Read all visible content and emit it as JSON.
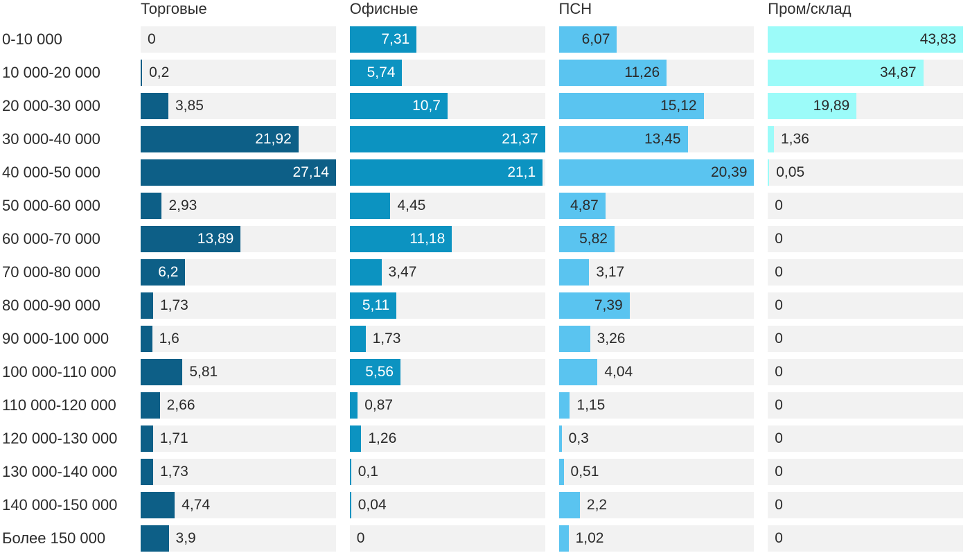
{
  "chart_data": {
    "type": "bar",
    "orientation": "horizontal",
    "title": "",
    "xlabel": "",
    "ylabel": "",
    "grid": false,
    "legend_position": "column-headers-top",
    "scaling_note": "each column scaled independently, column max = full track width",
    "decimal_separator": ",",
    "track_color": "#f2f2f2",
    "text_color": "#2b2b2b",
    "categories": [
      "0-10 000",
      "10 000-20 000",
      "20 000-30 000",
      "30 000-40 000",
      "40 000-50 000",
      "50 000-60 000",
      "60 000-70 000",
      "70 000-80 000",
      "80 000-90 000",
      "90 000-100 000",
      "100 000-110 000",
      "110 000-120 000",
      "120 000-130 000",
      "130 000-140 000",
      "140 000-150 000",
      "Более 150 000"
    ],
    "series": [
      {
        "name": "Торговые",
        "color": "#0d5f87",
        "label_color_inside": "#ffffff",
        "label_color_outside": "#2b2b2b",
        "scale_max": 27.14,
        "values": [
          0,
          0.2,
          3.85,
          21.92,
          27.14,
          2.93,
          13.89,
          6.2,
          1.73,
          1.6,
          5.81,
          2.66,
          1.71,
          1.73,
          4.74,
          3.9
        ]
      },
      {
        "name": "Офисные",
        "color": "#0c93c1",
        "label_color_inside": "#ffffff",
        "label_color_outside": "#2b2b2b",
        "scale_max": 21.37,
        "values": [
          7.31,
          5.74,
          10.7,
          21.37,
          21.1,
          4.45,
          11.18,
          3.47,
          5.11,
          1.73,
          5.56,
          0.87,
          1.26,
          0.1,
          0.04,
          0
        ]
      },
      {
        "name": "ПСН",
        "color": "#5ac4f0",
        "label_color_inside": "#2b2b2b",
        "label_color_outside": "#2b2b2b",
        "scale_max": 20.39,
        "values": [
          6.07,
          11.26,
          15.12,
          13.45,
          20.39,
          4.87,
          5.82,
          3.17,
          7.39,
          3.26,
          4.04,
          1.15,
          0.3,
          0.51,
          2.2,
          1.02
        ]
      },
      {
        "name": "Пром/склад",
        "color": "#9cfbf9",
        "label_color_inside": "#2b2b2b",
        "label_color_outside": "#2b2b2b",
        "scale_max": 43.83,
        "values": [
          43.83,
          34.87,
          19.89,
          1.36,
          0.05,
          0,
          0,
          0,
          0,
          0,
          0,
          0,
          0,
          0,
          0,
          0
        ]
      }
    ]
  }
}
